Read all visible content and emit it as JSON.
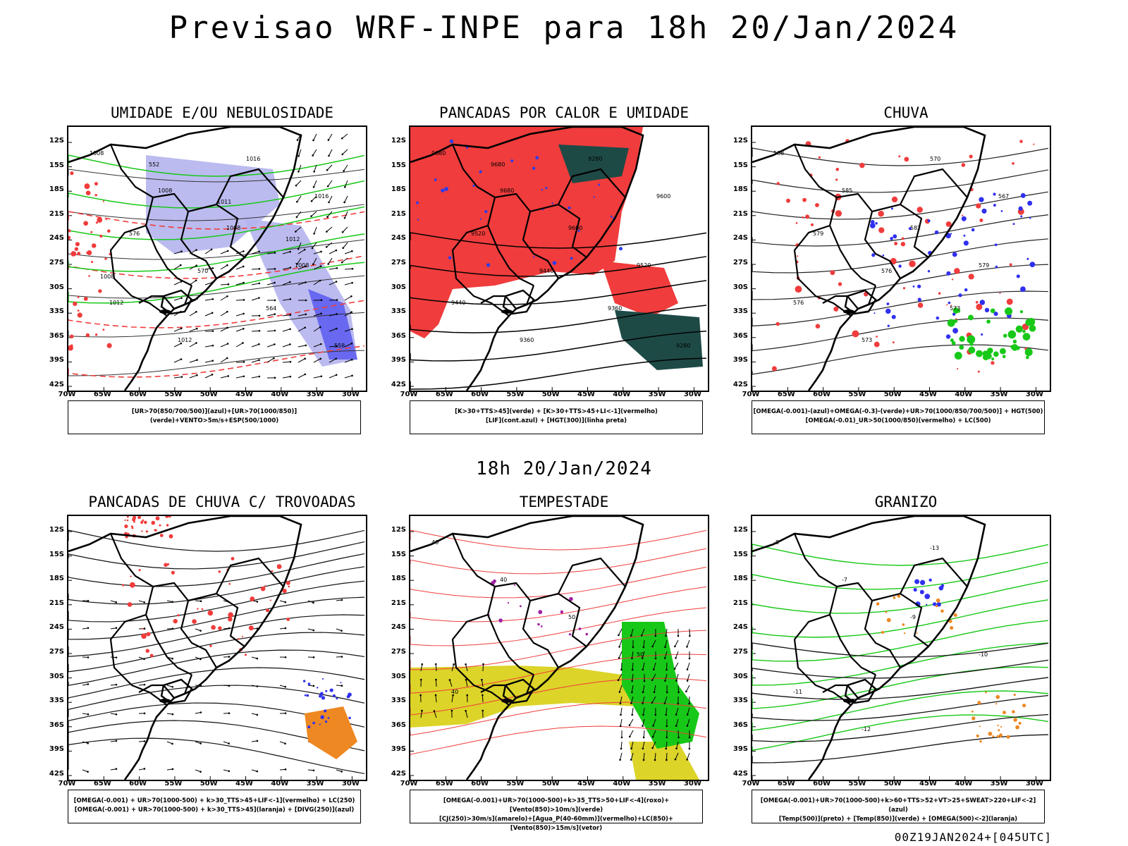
{
  "main_title": "Previsao WRF-INPE  para 18h 20/Jan/2024",
  "mid_title": "18h 20/Jan/2024",
  "footer": "00Z19JAN2024+[045UTC]",
  "lat_labels": [
    "12S",
    "15S",
    "18S",
    "21S",
    "24S",
    "27S",
    "30S",
    "33S",
    "36S",
    "39S",
    "42S"
  ],
  "lon_labels": [
    "70W",
    "65W",
    "60W",
    "55W",
    "50W",
    "45W",
    "40W",
    "35W",
    "30W"
  ],
  "colors": {
    "red": "#f03c3c",
    "green": "#18c818",
    "blue": "#3030f0",
    "lavender": "#b4b4ee",
    "orange": "#ee8822",
    "yellow": "#dcd428",
    "teal": "#1e4a46",
    "purple": "#a020a0"
  },
  "panels": [
    {
      "title": "UMIDADE E/OU NEBULOSIDADE",
      "legend": [
        "[UR>70(850/700/500)](azul)+[UR>70(1000/850)](verde)+VENTO>5m/s+ESP(500/1000)"
      ],
      "map_labels": [
        "1008",
        "1008",
        "1008",
        "1008",
        "1012",
        "1012",
        "1016",
        "1016",
        "576",
        "570",
        "564",
        "558",
        "552",
        "1011",
        "1012",
        "1008"
      ]
    },
    {
      "title": "PANCADAS POR CALOR E UMIDADE",
      "legend": [
        "[K>30+TTS>45](verde) + [K>30+TTS>45+LI<-1](vermelho)",
        "[LIF](cont.azul) + [HGT(300)](linha preta)"
      ],
      "map_labels": [
        "9680",
        "9680",
        "9600",
        "9520",
        "9440",
        "9360",
        "9280",
        "9600",
        "9520",
        "9440",
        "9360",
        "9280",
        "9680"
      ]
    },
    {
      "title": "CHUVA",
      "legend": [
        "[OMEGA(-0.001)-(azul)+OMEGA(-0.3)-(verde)+UR>70(1000/850/700/500)] + HGT(500)",
        "[OMEGA(-0.01)_UR>50(1000/850)(vermelho) + LC(500)"
      ],
      "map_labels": [
        "588",
        "585",
        "582",
        "579",
        "576",
        "573",
        "570",
        "567",
        "579",
        "576",
        "573"
      ]
    },
    {
      "title": "PANCADAS DE CHUVA C/ TROVOADAS",
      "legend": [
        "[OMEGA(-0.001) + UR>70(1000-500) + k>30_TTS>45+LIF<-1](vermelho) + LC(250)",
        "[OMEGA(-0.001) + UR>70(1000-500) + k>30_TTS>45](laranja) + [DIVG(250)](azul)"
      ],
      "map_labels": []
    },
    {
      "title": "TEMPESTADE",
      "legend": [
        "[OMEGA(-0.001)+UR>70(1000-500)+k>35_TTS>50+LIF<-4](roxo)+[Vento(850)>10m/s](verde)",
        "[CJ(250)>30m/s](amarelo)+[Agua_P(40-60mm)](vermelho)+LC(850)+[Vento(850)>15m/s](vetor)"
      ],
      "map_labels": [
        "40",
        "40",
        "50",
        "50",
        "40"
      ]
    },
    {
      "title": "GRANIZO",
      "legend": [
        "[OMEGA(-0.001)+UR>70(1000-500)+k>60+TTS>52+VT>25+SWEAT>220+LIF<-2](azul)",
        "[Temp(500)](preto) + [Temp(850)](verde) + [OMEGA(500)<-2](laranja)"
      ],
      "map_labels": [
        "-8",
        "-7",
        "-9",
        "-10",
        "-11",
        "-12",
        "-13"
      ]
    }
  ]
}
